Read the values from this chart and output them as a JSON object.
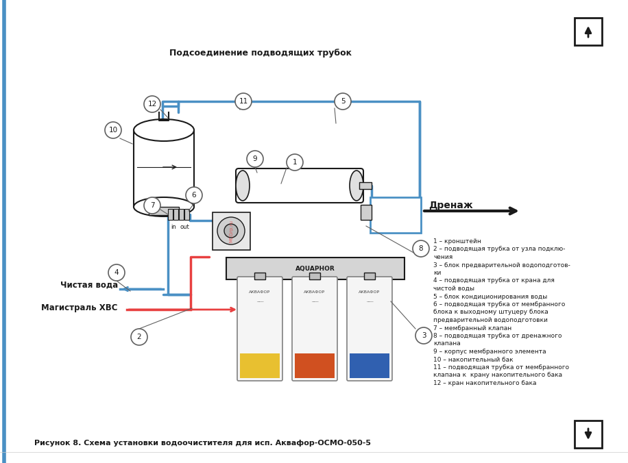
{
  "title": "Подсоединение подводящих трубок",
  "caption": "Рисунок 8. Схема установки водоочистителя для исп. Аквафор-ОСМО-050-5",
  "legend_lines": [
    "1 – кронштейн",
    "2 – подводящая трубка от узла подклю-",
    "чения",
    "3 – блок предварительной водоподготов-",
    "ки",
    "4 – подводящая трубка от крана для",
    "чистой воды",
    "5 – блок кондиционирования воды",
    "6 – подводящая трубка от мембранного",
    "блока к выходному штуцеру блока",
    "предварительной водоподготовки",
    "7 – мембранный клапан",
    "8 – подводящая трубка от дренажного",
    "клапана",
    "9 – корпус мембранного элемента",
    "10 – накопительный бак",
    "11 – подводящая трубка от мембранного",
    "клапана к  крану накопительного бака",
    "12 – кран накопительного бака"
  ],
  "label_chistaya": "Чистая вода",
  "label_magistral": "Магистраль ХВС",
  "label_drenazh": "Дренаж",
  "bg_color": "#ffffff",
  "blue_color": "#4a90c4",
  "red_color": "#e84040",
  "dark_color": "#1a1a1a",
  "gray_color": "#888888",
  "light_gray": "#cccccc"
}
